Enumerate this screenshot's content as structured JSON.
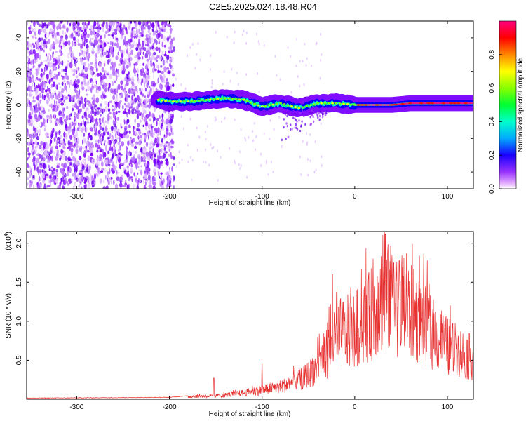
{
  "title": "C2E5.2025.024.18.48.R04",
  "chart_data": [
    {
      "type": "heatmap",
      "title": "",
      "xlabel": "Height of straight line (km)",
      "ylabel": "Frequency (Hz)",
      "xlim": [
        -354,
        128
      ],
      "ylim": [
        -50,
        50
      ],
      "xticks": [
        -300,
        -200,
        -100,
        0,
        100
      ],
      "yticks": [
        -40,
        -20,
        0,
        20,
        40
      ],
      "colorbar": {
        "label": "Normalized spectral amplitude",
        "range": [
          0,
          1
        ],
        "ticks": [
          "0.0",
          "0.2",
          "0.4",
          "0.6",
          "0.8"
        ],
        "colors": [
          "#ffffff",
          "#c040ff",
          "#6000ff",
          "#0000ff",
          "#00c0ff",
          "#00ff80",
          "#40ff00",
          "#ffff00",
          "#ff8000",
          "#ff0000",
          "#ff0080"
        ]
      },
      "noise_region_x": [
        -354,
        -195
      ],
      "signal_ridge": {
        "x": [
          -212,
          -200,
          -180,
          -160,
          -140,
          -120,
          -100,
          -80,
          -60,
          -40,
          -20,
          0,
          20,
          40,
          60,
          80,
          100,
          128
        ],
        "y": [
          3,
          2,
          2,
          3,
          4,
          3,
          -1,
          1,
          -2,
          1,
          1,
          0,
          0,
          0,
          1,
          1,
          1,
          1
        ]
      }
    },
    {
      "type": "line",
      "title": "",
      "xlabel": "Height of straight line (km)",
      "ylabel": "SNR (10 * v/v)",
      "y_multiplier": "(x10",
      "y_multiplier_exp": "4",
      "y_multiplier_close": ")",
      "xlim": [
        -354,
        128
      ],
      "ylim": [
        0,
        2.15
      ],
      "xticks": [
        -300,
        -200,
        -100,
        0,
        100
      ],
      "yticks": [
        0.5,
        1.0,
        1.5,
        2.0
      ],
      "ytick_labels": [
        "0.5",
        "1.0",
        "1.5",
        "2.0"
      ],
      "series": [
        {
          "color": "#e83232",
          "envelope": {
            "x": [
              -354,
              -200,
              -170,
              -150,
              -120,
              -100,
              -80,
              -60,
              -45,
              -30,
              -15,
              0,
              15,
              30,
              45,
              60,
              80,
              100,
              128
            ],
            "y": [
              0.01,
              0.02,
              0.05,
              0.05,
              0.1,
              0.15,
              0.2,
              0.3,
              0.45,
              0.75,
              1.05,
              1.1,
              1.3,
              1.65,
              1.55,
              1.4,
              1.1,
              0.85,
              0.65
            ]
          },
          "peaks": [
            {
              "x": -152,
              "y": 0.27
            },
            {
              "x": -100,
              "y": 0.45
            },
            {
              "x": -24,
              "y": 1.6
            },
            {
              "x": 33,
              "y": 2.12
            },
            {
              "x": 42,
              "y": 1.75
            }
          ]
        }
      ]
    }
  ]
}
